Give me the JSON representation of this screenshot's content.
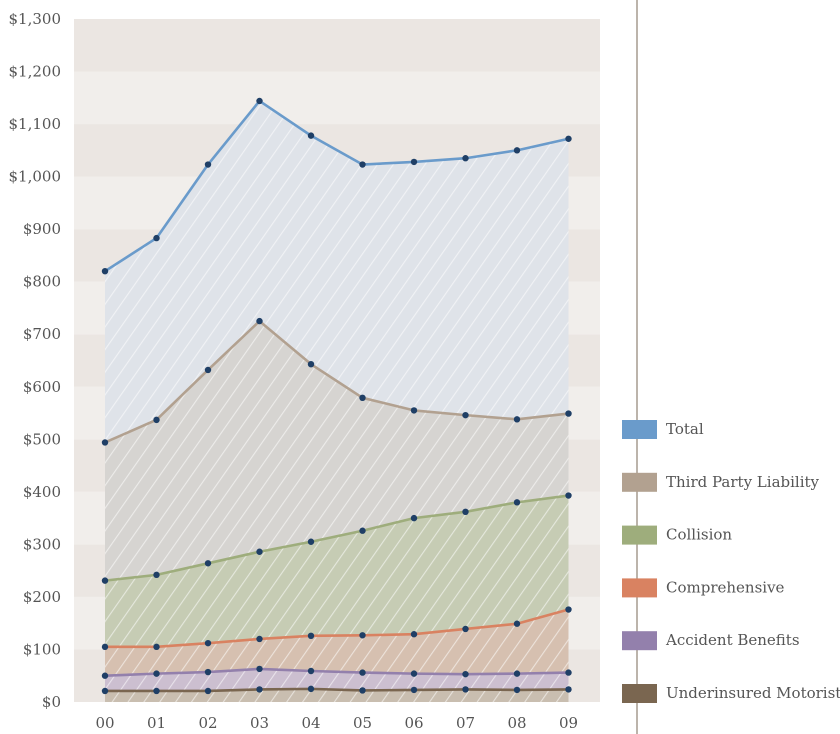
{
  "chart_data": {
    "type": "area",
    "categories": [
      "00",
      "01",
      "02",
      "03",
      "04",
      "05",
      "06",
      "07",
      "08",
      "09"
    ],
    "ylim": [
      0,
      1300
    ],
    "yticks": [
      0,
      100,
      200,
      300,
      400,
      500,
      600,
      700,
      800,
      900,
      1000,
      1100,
      1200,
      1300
    ],
    "ytick_labels": [
      "$0",
      "$100",
      "$200",
      "$300",
      "$400",
      "$500",
      "$600",
      "$700",
      "$800",
      "$900",
      "$1,000",
      "$1,100",
      "$1,200",
      "$1,300"
    ],
    "legend_position": "right",
    "series": [
      {
        "name": "Total",
        "color": "#6a9bcb",
        "fill": "#dfe3e9",
        "values": [
          820,
          883,
          1023,
          1144,
          1078,
          1023,
          1028,
          1035,
          1050,
          1072
        ]
      },
      {
        "name": "Third Party Liability",
        "color": "#b2a190",
        "fill": "#d6d4d1",
        "values": [
          494,
          537,
          632,
          725,
          643,
          579,
          555,
          546,
          538,
          549
        ]
      },
      {
        "name": "Collision",
        "color": "#9ead7c",
        "fill": "#c6ccb4",
        "values": [
          231,
          242,
          264,
          286,
          305,
          326,
          350,
          362,
          380,
          393
        ]
      },
      {
        "name": "Comprehensive",
        "color": "#d98261",
        "fill": "#d6c0b0",
        "values": [
          105,
          105,
          112,
          120,
          126,
          127,
          129,
          139,
          149,
          176
        ]
      },
      {
        "name": "Accident Benefits",
        "color": "#9380ac",
        "fill": "#ccbfd0",
        "values": [
          50,
          54,
          57,
          63,
          59,
          56,
          54,
          53,
          54,
          56
        ]
      },
      {
        "name": "Underinsured Motorist",
        "color": "#7a6650",
        "fill": "#c9beb0",
        "values": [
          21,
          21,
          21,
          24,
          25,
          22,
          23,
          24,
          23,
          24
        ]
      }
    ]
  }
}
